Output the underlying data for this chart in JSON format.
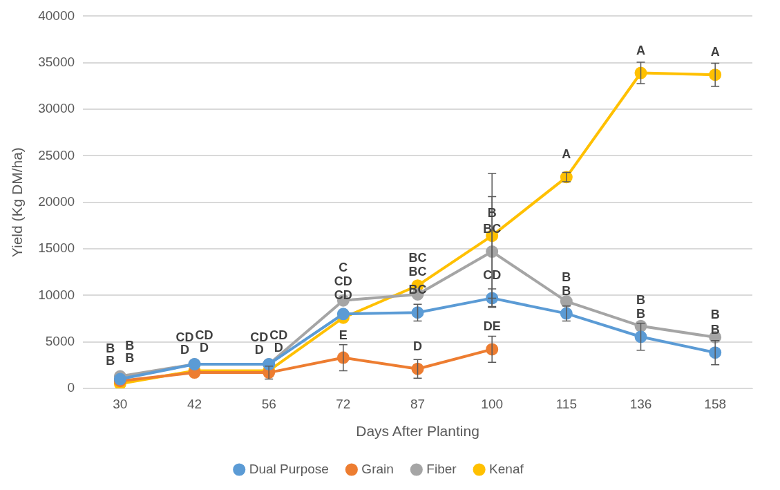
{
  "chart_data": {
    "type": "line",
    "xlabel": "Days After Planting",
    "ylabel": "Yield (Kg DM/ha)",
    "categories": [
      "30",
      "42",
      "56",
      "72",
      "87",
      "100",
      "115",
      "136",
      "158"
    ],
    "ylim": [
      0,
      40000
    ],
    "yticks": [
      0,
      5000,
      10000,
      15000,
      20000,
      25000,
      30000,
      35000,
      40000
    ],
    "grid": "y",
    "legend": "bottom",
    "marker": "circle",
    "series": [
      {
        "name": "Dual Purpose",
        "color": "#5b9bd5",
        "values": [
          1000,
          2600,
          2600,
          8000,
          8150,
          9700,
          8050,
          5550,
          3850
        ],
        "errors": [
          null,
          null,
          null,
          null,
          900,
          1000,
          800,
          1450,
          1300
        ],
        "value_labels": [
          "B",
          "CD",
          "CD",
          "CD",
          "BC",
          "CD",
          "B",
          "B",
          "B"
        ]
      },
      {
        "name": "Grain",
        "color": "#ed7d31",
        "values": [
          800,
          1700,
          1700,
          3300,
          2100,
          4200,
          null,
          null,
          null
        ],
        "errors": [
          null,
          null,
          700,
          1400,
          1000,
          1400,
          null,
          null,
          null
        ],
        "value_labels": [
          "B",
          "D",
          "D",
          "E",
          "D",
          "DE",
          null,
          null,
          null
        ]
      },
      {
        "name": "Fiber",
        "color": "#a5a5a5",
        "values": [
          1300,
          2600,
          2600,
          9450,
          10100,
          14700,
          9350,
          6700,
          5500
        ],
        "errors": [
          null,
          null,
          null,
          null,
          null,
          5900,
          null,
          null,
          null
        ],
        "value_labels": [
          "B",
          "CD",
          "CD",
          "C",
          "BC",
          "BC",
          "B",
          "B",
          "B"
        ]
      },
      {
        "name": "Kenaf",
        "color": "#ffc000",
        "values": [
          500,
          1900,
          1900,
          7600,
          11050,
          16400,
          22700,
          33900,
          33700
        ],
        "errors": [
          null,
          null,
          null,
          null,
          null,
          6700,
          500,
          1150,
          1250
        ],
        "value_labels": [
          "B",
          "D",
          "D",
          "CD",
          "BC",
          "B",
          "A",
          "A",
          "A"
        ]
      }
    ]
  }
}
